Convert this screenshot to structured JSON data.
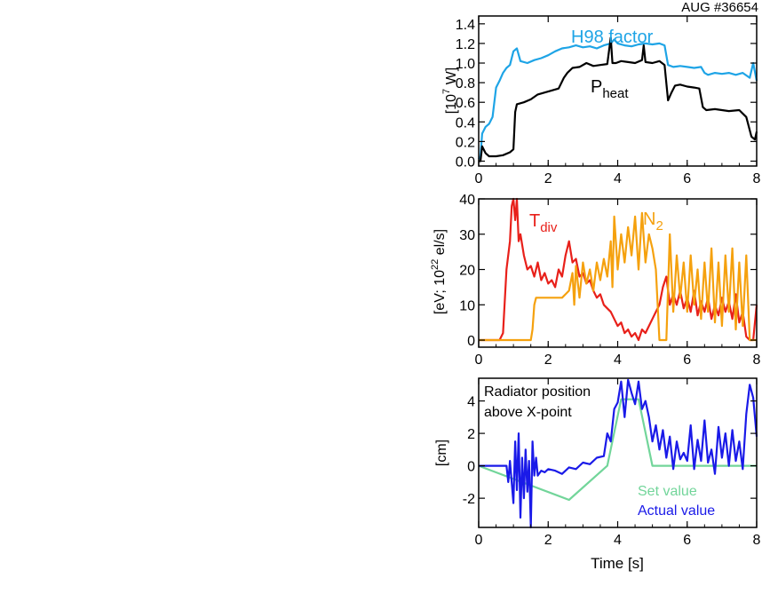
{
  "figure": {
    "shot_label": "AUG #36654",
    "xlabel": "Time [s]"
  },
  "chart_data": [
    {
      "type": "line",
      "panel": "top",
      "ylabel_main": "[10",
      "ylabel_sup": "7",
      "ylabel_tail": " W]",
      "xlim": [
        0,
        8
      ],
      "ylim": [
        -0.05,
        1.48
      ],
      "xticks": [
        "0",
        "2",
        "4",
        "6",
        "8"
      ],
      "yticks": [
        "0.0",
        "0.2",
        "0.4",
        "0.6",
        "0.8",
        "1.0",
        "1.2",
        "1.4"
      ],
      "series": [
        {
          "name": "H98 factor",
          "color": "#1ea4e6",
          "x": [
            0,
            0.05,
            0.1,
            0.2,
            0.3,
            0.4,
            0.5,
            0.6,
            0.7,
            0.8,
            0.9,
            1.0,
            1.1,
            1.2,
            1.4,
            1.6,
            1.8,
            2.0,
            2.2,
            2.4,
            2.6,
            2.8,
            3.0,
            3.2,
            3.4,
            3.6,
            3.8,
            3.9,
            4.0,
            4.2,
            4.4,
            4.6,
            4.8,
            5.0,
            5.2,
            5.35,
            5.45,
            5.6,
            5.8,
            6.0,
            6.2,
            6.4,
            6.5,
            6.6,
            6.8,
            7.0,
            7.2,
            7.4,
            7.6,
            7.8,
            7.9,
            8.0
          ],
          "y": [
            0.02,
            0.05,
            0.28,
            0.35,
            0.38,
            0.45,
            0.75,
            0.82,
            0.9,
            0.95,
            0.98,
            1.12,
            1.15,
            1.02,
            1.0,
            1.03,
            1.05,
            1.08,
            1.12,
            1.15,
            1.16,
            1.18,
            1.16,
            1.17,
            1.15,
            1.18,
            1.2,
            1.24,
            1.2,
            1.18,
            1.17,
            1.19,
            1.2,
            1.19,
            1.2,
            1.18,
            0.98,
            0.96,
            0.97,
            0.96,
            0.95,
            0.96,
            0.9,
            0.88,
            0.9,
            0.89,
            0.9,
            0.88,
            0.9,
            0.85,
            1.0,
            0.82
          ]
        },
        {
          "name": "Pheat",
          "label_main": "P",
          "label_sub": "heat",
          "color": "#000000",
          "x": [
            0,
            0.05,
            0.1,
            0.2,
            0.3,
            0.5,
            0.7,
            0.9,
            1.0,
            1.05,
            1.1,
            1.3,
            1.5,
            1.7,
            1.9,
            2.1,
            2.3,
            2.45,
            2.55,
            2.7,
            2.9,
            3.1,
            3.3,
            3.5,
            3.7,
            3.8,
            3.85,
            3.95,
            4.1,
            4.3,
            4.5,
            4.7,
            4.75,
            4.8,
            5.0,
            5.2,
            5.35,
            5.45,
            5.55,
            5.65,
            5.8,
            6.0,
            6.2,
            6.35,
            6.45,
            6.55,
            6.8,
            7.0,
            7.2,
            7.5,
            7.7,
            7.85,
            7.95,
            8.0
          ],
          "y": [
            0.0,
            0.0,
            0.15,
            0.08,
            0.05,
            0.05,
            0.06,
            0.09,
            0.12,
            0.5,
            0.58,
            0.6,
            0.63,
            0.68,
            0.7,
            0.72,
            0.74,
            0.85,
            0.9,
            0.95,
            0.96,
            1.0,
            0.97,
            0.98,
            0.99,
            1.26,
            1.0,
            1.0,
            1.02,
            1.01,
            1.0,
            1.03,
            1.18,
            1.01,
            1.0,
            1.02,
            0.98,
            0.62,
            0.7,
            0.77,
            0.78,
            0.76,
            0.75,
            0.74,
            0.55,
            0.52,
            0.53,
            0.52,
            0.51,
            0.52,
            0.45,
            0.25,
            0.22,
            0.3
          ]
        }
      ]
    },
    {
      "type": "line",
      "panel": "middle",
      "ylabel_main": "[eV; 10",
      "ylabel_sup": "22",
      "ylabel_tail": " el/s]",
      "xlim": [
        0,
        8
      ],
      "ylim": [
        -2,
        40
      ],
      "xticks": [
        "0",
        "2",
        "4",
        "6",
        "8"
      ],
      "yticks": [
        "0",
        "10",
        "20",
        "30",
        "40"
      ],
      "series": [
        {
          "name": "Tdiv",
          "label_main": "T",
          "label_sub": "div",
          "color": "#e8201a",
          "x": [
            0,
            0.6,
            0.7,
            0.8,
            0.9,
            0.95,
            1.0,
            1.05,
            1.1,
            1.15,
            1.2,
            1.3,
            1.4,
            1.5,
            1.6,
            1.7,
            1.8,
            1.9,
            2.0,
            2.1,
            2.2,
            2.3,
            2.4,
            2.5,
            2.6,
            2.7,
            2.8,
            2.9,
            3.0,
            3.1,
            3.2,
            3.3,
            3.4,
            3.5,
            3.6,
            3.7,
            3.8,
            3.9,
            4.0,
            4.1,
            4.2,
            4.3,
            4.4,
            4.5,
            4.6,
            4.7,
            4.8,
            4.9,
            5.0,
            5.1,
            5.2,
            5.3,
            5.4,
            5.5,
            5.6,
            5.7,
            5.8,
            5.9,
            6.0,
            6.1,
            6.2,
            6.3,
            6.4,
            6.5,
            6.6,
            6.7,
            6.8,
            6.9,
            7.0,
            7.1,
            7.2,
            7.3,
            7.4,
            7.5,
            7.6,
            7.7,
            7.8,
            7.9,
            8.0
          ],
          "y": [
            0,
            0,
            2,
            20,
            28,
            38,
            40,
            34,
            40,
            28,
            30,
            24,
            20,
            21,
            18,
            22,
            17,
            19,
            16,
            17,
            15,
            20,
            18,
            24,
            28,
            22,
            23,
            18,
            19,
            16,
            17,
            14,
            12,
            13,
            10,
            9,
            8,
            6,
            4,
            5,
            2,
            3,
            1,
            2,
            0,
            3,
            2,
            4,
            6,
            8,
            10,
            15,
            18,
            10,
            13,
            10,
            14,
            9,
            12,
            8,
            14,
            7,
            11,
            8,
            12,
            6,
            10,
            7,
            12,
            8,
            11,
            6,
            13,
            5,
            8,
            1,
            0,
            0,
            10
          ]
        },
        {
          "name": "N2",
          "label_main": "N",
          "label_sub": "2",
          "color": "#f5a10e",
          "x": [
            0,
            1.4,
            1.5,
            1.55,
            1.6,
            1.65,
            1.8,
            2.0,
            2.2,
            2.4,
            2.5,
            2.6,
            2.7,
            2.75,
            2.8,
            2.9,
            3.0,
            3.1,
            3.2,
            3.3,
            3.4,
            3.5,
            3.6,
            3.7,
            3.8,
            3.85,
            3.9,
            4.0,
            4.1,
            4.2,
            4.3,
            4.4,
            4.5,
            4.6,
            4.7,
            4.8,
            4.9,
            5.0,
            5.1,
            5.2,
            5.3,
            5.4,
            5.5,
            5.6,
            5.7,
            5.8,
            5.9,
            6.0,
            6.1,
            6.2,
            6.3,
            6.4,
            6.5,
            6.6,
            6.7,
            6.8,
            6.9,
            7.0,
            7.1,
            7.2,
            7.3,
            7.4,
            7.5,
            7.6,
            7.7,
            7.8,
            7.9,
            8.0
          ],
          "y": [
            0,
            0,
            0,
            3,
            10,
            12,
            12,
            12,
            12,
            12,
            13,
            14,
            19,
            10,
            21,
            12,
            22,
            16,
            20,
            14,
            22,
            17,
            23,
            18,
            28,
            15,
            35,
            20,
            30,
            22,
            32,
            24,
            35,
            20,
            36,
            22,
            30,
            26,
            20,
            0,
            0,
            0,
            30,
            8,
            24,
            12,
            22,
            8,
            24,
            10,
            20,
            6,
            22,
            8,
            26,
            5,
            22,
            4,
            24,
            8,
            26,
            3,
            22,
            4,
            24,
            0,
            0,
            0
          ]
        }
      ]
    },
    {
      "type": "line",
      "panel": "bottom",
      "ylabel_main": "[cm]",
      "annotation_line1": "Radiator position",
      "annotation_line2": "above X-point",
      "xlim": [
        0,
        8
      ],
      "ylim": [
        -3.8,
        5.4
      ],
      "xticks": [
        "0",
        "2",
        "4",
        "6",
        "8"
      ],
      "yticks": [
        "-2",
        "0",
        "2",
        "4"
      ],
      "series": [
        {
          "name": "Set value",
          "color": "#72d59a",
          "x": [
            0,
            2.6,
            3.7,
            4.1,
            4.6,
            5.0,
            8.0
          ],
          "y": [
            0,
            -2.1,
            0,
            4.1,
            4.1,
            0,
            0
          ]
        },
        {
          "name": "Actual value",
          "color": "#1a1ae8",
          "x": [
            0,
            0.8,
            0.85,
            0.9,
            1.0,
            1.05,
            1.1,
            1.15,
            1.2,
            1.25,
            1.3,
            1.35,
            1.4,
            1.45,
            1.5,
            1.55,
            1.6,
            1.65,
            1.7,
            1.8,
            1.9,
            2.0,
            2.2,
            2.4,
            2.6,
            2.8,
            3.0,
            3.2,
            3.4,
            3.6,
            3.7,
            3.8,
            3.9,
            4.0,
            4.1,
            4.2,
            4.3,
            4.4,
            4.5,
            4.6,
            4.7,
            4.8,
            4.9,
            5.0,
            5.1,
            5.2,
            5.3,
            5.4,
            5.5,
            5.6,
            5.7,
            5.8,
            5.9,
            6.0,
            6.1,
            6.2,
            6.3,
            6.4,
            6.5,
            6.6,
            6.7,
            6.8,
            6.9,
            7.0,
            7.1,
            7.2,
            7.3,
            7.4,
            7.5,
            7.6,
            7.7,
            7.8,
            7.9,
            8.0
          ],
          "y": [
            0,
            0,
            -1.0,
            0.3,
            -2.3,
            1.5,
            -1.5,
            2.0,
            -3.2,
            0.5,
            -2.0,
            1.0,
            -1.6,
            0.3,
            -3.8,
            1.5,
            -0.6,
            0.5,
            -0.6,
            -0.3,
            -0.4,
            -0.2,
            -0.3,
            -0.5,
            -0.1,
            -0.2,
            0.2,
            0.1,
            0.5,
            0.6,
            2.0,
            1.5,
            3.5,
            3.9,
            5.2,
            3.0,
            5.3,
            4.5,
            3.8,
            5.2,
            3.5,
            4.0,
            3.0,
            1.5,
            2.5,
            1.0,
            2.2,
            0.5,
            1.8,
            -0.2,
            1.5,
            0.4,
            0.8,
            0.3,
            2.5,
            -0.2,
            1.6,
            0.3,
            2.8,
            0.2,
            1.0,
            -0.5,
            2.4,
            0.5,
            2.0,
            0.0,
            2.2,
            0.3,
            1.5,
            -0.2,
            3.2,
            5.0,
            4.2,
            1.8
          ]
        }
      ]
    }
  ]
}
